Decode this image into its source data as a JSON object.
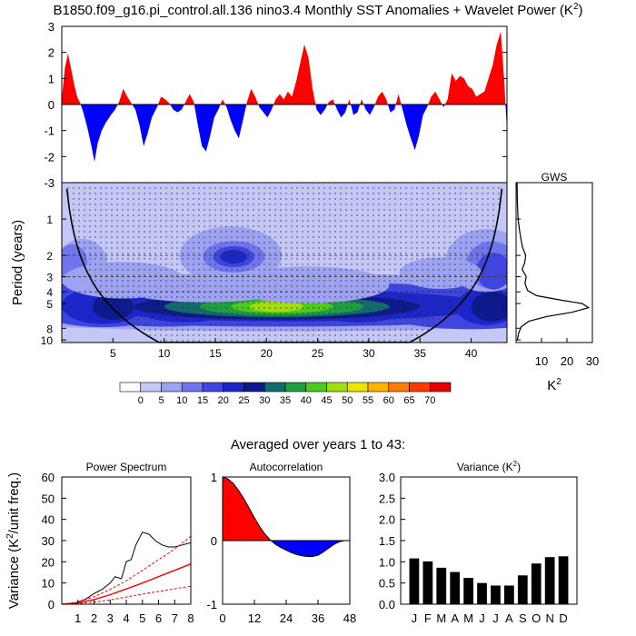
{
  "title": "B1850.f09_g16.pi_control.all.136 nino3.4 Monthly SST Anomalies + Wavelet Power (K",
  "title_sup": "2",
  "title_close": ")",
  "colors": {
    "pos": "#ff0000",
    "neg": "#0000ff",
    "black": "#000000"
  },
  "chart_data": [
    {
      "type": "area",
      "name": "sst-anomaly-series",
      "ylim": [
        -3,
        3
      ],
      "xlim": [
        0,
        43.5
      ],
      "y_ticks": [
        -3,
        -2,
        -1,
        0,
        1,
        2,
        3
      ],
      "anomaly_trace": [
        [
          0,
          0.2
        ],
        [
          0.3,
          1.4
        ],
        [
          0.6,
          1.95
        ],
        [
          0.9,
          1.4
        ],
        [
          1.2,
          0.8
        ],
        [
          1.5,
          0.3
        ],
        [
          1.8,
          0.05
        ],
        [
          2.1,
          -0.3
        ],
        [
          2.5,
          -0.9
        ],
        [
          2.9,
          -1.6
        ],
        [
          3.2,
          -2.2
        ],
        [
          3.5,
          -1.5
        ],
        [
          3.9,
          -1.0
        ],
        [
          4.3,
          -0.7
        ],
        [
          4.8,
          -0.4
        ],
        [
          5.2,
          -0.2
        ],
        [
          5.6,
          0.1
        ],
        [
          6.0,
          0.6
        ],
        [
          6.4,
          0.3
        ],
        [
          6.8,
          0.05
        ],
        [
          7.2,
          -0.2
        ],
        [
          7.6,
          -0.8
        ],
        [
          8.0,
          -1.6
        ],
        [
          8.4,
          -1.1
        ],
        [
          8.8,
          -0.5
        ],
        [
          9.3,
          -0.1
        ],
        [
          9.7,
          0.3
        ],
        [
          10.1,
          0.2
        ],
        [
          10.5,
          0.05
        ],
        [
          10.9,
          -0.2
        ],
        [
          11.3,
          -0.3
        ],
        [
          11.7,
          -0.2
        ],
        [
          12.1,
          0.1
        ],
        [
          12.5,
          0.4
        ],
        [
          12.9,
          0.1
        ],
        [
          13.3,
          -0.8
        ],
        [
          13.7,
          -1.6
        ],
        [
          14.1,
          -1.8
        ],
        [
          14.5,
          -1.2
        ],
        [
          14.9,
          -0.5
        ],
        [
          15.3,
          -0.2
        ],
        [
          15.7,
          0.2
        ],
        [
          16.1,
          -0.1
        ],
        [
          16.5,
          -0.6
        ],
        [
          16.9,
          -1.0
        ],
        [
          17.3,
          -1.3
        ],
        [
          17.7,
          -0.6
        ],
        [
          18.1,
          0.1
        ],
        [
          18.5,
          0.6
        ],
        [
          18.9,
          0.3
        ],
        [
          19.3,
          -0.1
        ],
        [
          19.7,
          -0.3
        ],
        [
          20.1,
          -0.5
        ],
        [
          20.5,
          -0.2
        ],
        [
          20.9,
          0.2
        ],
        [
          21.3,
          0.4
        ],
        [
          21.7,
          0.2
        ],
        [
          22.1,
          0.5
        ],
        [
          22.5,
          0.3
        ],
        [
          22.9,
          0.9
        ],
        [
          23.3,
          1.6
        ],
        [
          23.7,
          2.3
        ],
        [
          24.1,
          1.8
        ],
        [
          24.5,
          0.6
        ],
        [
          24.9,
          -0.2
        ],
        [
          25.3,
          -0.4
        ],
        [
          25.7,
          -0.2
        ],
        [
          26.1,
          0.1
        ],
        [
          26.5,
          0.2
        ],
        [
          26.9,
          -0.2
        ],
        [
          27.3,
          -0.5
        ],
        [
          27.7,
          -0.3
        ],
        [
          28.1,
          0.2
        ],
        [
          28.5,
          -0.4
        ],
        [
          28.9,
          -0.3
        ],
        [
          29.3,
          0.2
        ],
        [
          29.7,
          -0.2
        ],
        [
          30.1,
          -0.4
        ],
        [
          30.5,
          -0.1
        ],
        [
          30.9,
          0.3
        ],
        [
          31.3,
          0.5
        ],
        [
          31.7,
          0.2
        ],
        [
          32.1,
          -0.3
        ],
        [
          32.5,
          -0.2
        ],
        [
          32.9,
          0.4
        ],
        [
          33.3,
          -0.2
        ],
        [
          33.7,
          -0.8
        ],
        [
          34.1,
          -1.3
        ],
        [
          34.5,
          -1.75
        ],
        [
          34.9,
          -1.2
        ],
        [
          35.3,
          -0.4
        ],
        [
          35.7,
          -0.1
        ],
        [
          36.1,
          0.3
        ],
        [
          36.5,
          0.5
        ],
        [
          36.9,
          0.2
        ],
        [
          37.3,
          -0.1
        ],
        [
          37.7,
          0.2
        ],
        [
          38.1,
          1.2
        ],
        [
          38.5,
          0.9
        ],
        [
          38.9,
          1.1
        ],
        [
          39.3,
          1.0
        ],
        [
          39.7,
          0.7
        ],
        [
          40.1,
          0.6
        ],
        [
          40.5,
          0.3
        ],
        [
          40.9,
          0.4
        ],
        [
          41.3,
          0.5
        ],
        [
          41.7,
          1.0
        ],
        [
          42.1,
          1.5
        ],
        [
          42.5,
          2.3
        ],
        [
          42.9,
          2.8
        ],
        [
          43.2,
          1.1
        ],
        [
          43.5,
          -1.0
        ]
      ]
    },
    {
      "type": "heatmap",
      "name": "wavelet-power",
      "xlabel": "",
      "ylabel": "Period (years)",
      "x_ticks": [
        5,
        10,
        15,
        20,
        25,
        30,
        35,
        40
      ],
      "y_ticks": [
        1,
        2,
        3,
        4,
        5,
        8,
        10
      ],
      "xlim": [
        0,
        43.5
      ],
      "ylim": [
        0.5,
        10.5
      ],
      "levels": [
        0,
        5,
        10,
        15,
        20,
        25,
        30,
        35,
        40,
        45,
        50,
        55,
        60,
        65,
        70
      ],
      "level_colors": [
        "#ffffff",
        "#c5c8f7",
        "#9da2f2",
        "#6f75ec",
        "#3f46e0",
        "#1c25c8",
        "#0d1a8c",
        "#136b6b",
        "#1f9e3f",
        "#4fc820",
        "#a0df0f",
        "#ece500",
        "#ffb400",
        "#ff7a00",
        "#ff3a00",
        "#e60000"
      ],
      "legend_labels": [
        "0",
        "5",
        "10",
        "15",
        "20",
        "25",
        "30",
        "35",
        "40",
        "45",
        "50",
        "55",
        "60",
        "65",
        "70"
      ],
      "gws": {
        "title": "GWS",
        "xlabel": "K",
        "xlabel_sup": "2",
        "x_ticks": [
          10,
          20,
          30
        ],
        "xlim": [
          0,
          30
        ],
        "points": [
          [
            0.5,
            0.4
          ],
          [
            0.7,
            0.5
          ],
          [
            1.0,
            0.8
          ],
          [
            1.3,
            1.5
          ],
          [
            1.7,
            2.5
          ],
          [
            2.0,
            3.8
          ],
          [
            2.3,
            3.4
          ],
          [
            2.6,
            2.4
          ],
          [
            3.0,
            4.0
          ],
          [
            3.4,
            3.5
          ],
          [
            3.9,
            4.5
          ],
          [
            4.3,
            8.0
          ],
          [
            4.7,
            18.0
          ],
          [
            5.0,
            26.0
          ],
          [
            5.4,
            28.5
          ],
          [
            5.9,
            22.0
          ],
          [
            6.4,
            12.0
          ],
          [
            7.0,
            5.0
          ],
          [
            7.8,
            2.0
          ],
          [
            8.8,
            1.0
          ],
          [
            10.0,
            0.5
          ]
        ]
      }
    },
    {
      "type": "line",
      "name": "power-spectrum",
      "title": "Power Spectrum",
      "ylabel": "Variance (K",
      "ylabel_sup": "2",
      "ylabel_close": "/unit freq.)",
      "x_ticks": [
        1,
        2,
        3,
        4,
        5,
        6,
        7,
        8
      ],
      "y_ticks": [
        0,
        10,
        20,
        30,
        40,
        50,
        60
      ],
      "xlim": [
        0,
        8
      ],
      "ylim": [
        0,
        60
      ],
      "series": [
        {
          "values": [
            [
              0,
              0
            ],
            [
              0.5,
              0.2
            ],
            [
              1,
              1
            ],
            [
              1.5,
              2.5
            ],
            [
              2,
              5
            ],
            [
              2.5,
              7
            ],
            [
              3,
              10
            ],
            [
              3.3,
              13
            ],
            [
              3.7,
              12
            ],
            [
              4,
              20
            ],
            [
              4.3,
              21
            ],
            [
              4.6,
              28
            ],
            [
              5,
              34
            ],
            [
              5.4,
              33
            ],
            [
              5.8,
              30
            ],
            [
              6.2,
              28
            ],
            [
              6.6,
              27
            ],
            [
              7,
              27
            ],
            [
              7.5,
              28
            ],
            [
              8,
              29
            ]
          ],
          "color": "#000000",
          "width": 1
        },
        {
          "values": [
            [
              0,
              0
            ],
            [
              1,
              0.6
            ],
            [
              2,
              2.2
            ],
            [
              3,
              4.5
            ],
            [
              4,
              7.2
            ],
            [
              5,
              10
            ],
            [
              6,
              13
            ],
            [
              7,
              16
            ],
            [
              8,
              19
            ]
          ],
          "color": "#ff0000",
          "width": 1.4
        },
        {
          "values": [
            [
              0,
              0
            ],
            [
              1,
              1
            ],
            [
              2,
              3.5
            ],
            [
              3,
              7
            ],
            [
              4,
              11
            ],
            [
              5,
              16
            ],
            [
              6,
              21
            ],
            [
              7,
              26
            ],
            [
              8,
              32
            ]
          ],
          "color": "#ff0000",
          "width": 1,
          "dash": true
        },
        {
          "values": [
            [
              0,
              0
            ],
            [
              1,
              0.3
            ],
            [
              2,
              1
            ],
            [
              3,
              2
            ],
            [
              4,
              3.4
            ],
            [
              5,
              4.8
            ],
            [
              6,
              6
            ],
            [
              7,
              7.3
            ],
            [
              8,
              8.5
            ]
          ],
          "color": "#ff0000",
          "width": 1,
          "dash": true
        }
      ]
    },
    {
      "type": "area",
      "name": "autocorrelation",
      "title": "Autocorrelation",
      "x_ticks": [
        0,
        12,
        24,
        36,
        48
      ],
      "y_ticks": [
        -1,
        0,
        1
      ],
      "xlim": [
        0,
        48
      ],
      "ylim": [
        -1,
        1
      ],
      "points": [
        [
          0,
          1
        ],
        [
          2,
          0.97
        ],
        [
          4,
          0.9
        ],
        [
          6,
          0.79
        ],
        [
          8,
          0.66
        ],
        [
          10,
          0.51
        ],
        [
          12,
          0.36
        ],
        [
          14,
          0.22
        ],
        [
          16,
          0.1
        ],
        [
          18,
          0.01
        ],
        [
          20,
          -0.06
        ],
        [
          22,
          -0.11
        ],
        [
          24,
          -0.15
        ],
        [
          26,
          -0.19
        ],
        [
          28,
          -0.22
        ],
        [
          30,
          -0.24
        ],
        [
          32,
          -0.25
        ],
        [
          34,
          -0.25
        ],
        [
          36,
          -0.23
        ],
        [
          38,
          -0.18
        ],
        [
          40,
          -0.12
        ],
        [
          42,
          -0.06
        ],
        [
          44,
          -0.02
        ],
        [
          46,
          0
        ],
        [
          48,
          0
        ]
      ]
    },
    {
      "type": "bar",
      "name": "monthly-variance",
      "title": "Variance (K",
      "title_sup": "2",
      "title_close": ")",
      "categories": [
        "J",
        "F",
        "M",
        "A",
        "M",
        "J",
        "J",
        "A",
        "S",
        "O",
        "N",
        "D"
      ],
      "values": [
        1.08,
        1.01,
        0.86,
        0.76,
        0.62,
        0.5,
        0.44,
        0.44,
        0.68,
        0.96,
        1.11,
        1.13
      ],
      "y_ticks": [
        "0.0",
        "0.5",
        "1.0",
        "1.5",
        "2.0",
        "2.5",
        "3.0"
      ],
      "ylim": [
        0,
        3
      ]
    }
  ],
  "averaged_label": "Averaged over years 1 to 43:"
}
